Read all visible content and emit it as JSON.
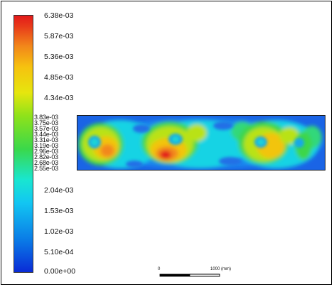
{
  "legend": {
    "ticks": [
      "6.38e-03",
      "5.87e-03",
      "5.36e-03",
      "4.85e-03",
      "4.34e-03",
      "2.04e-03",
      "1.53e-03",
      "1.02e-03",
      "5.10e-04",
      "0.00e+00"
    ],
    "cluster_ticks": [
      "3.83e-03",
      "3.75e-03",
      "3.57e-03",
      "3.44e-03",
      "3.31e-03",
      "3.19e-03",
      "2.96e-03",
      "2.82e-03",
      "2.68e-03",
      "2.55e-03"
    ]
  },
  "scale_bar": {
    "start_label": "0",
    "end_label": "1000 (mm)"
  },
  "colors": {
    "low": "#0a2bd6",
    "mid": "#19e6d0",
    "high": "#e31a1a"
  }
}
